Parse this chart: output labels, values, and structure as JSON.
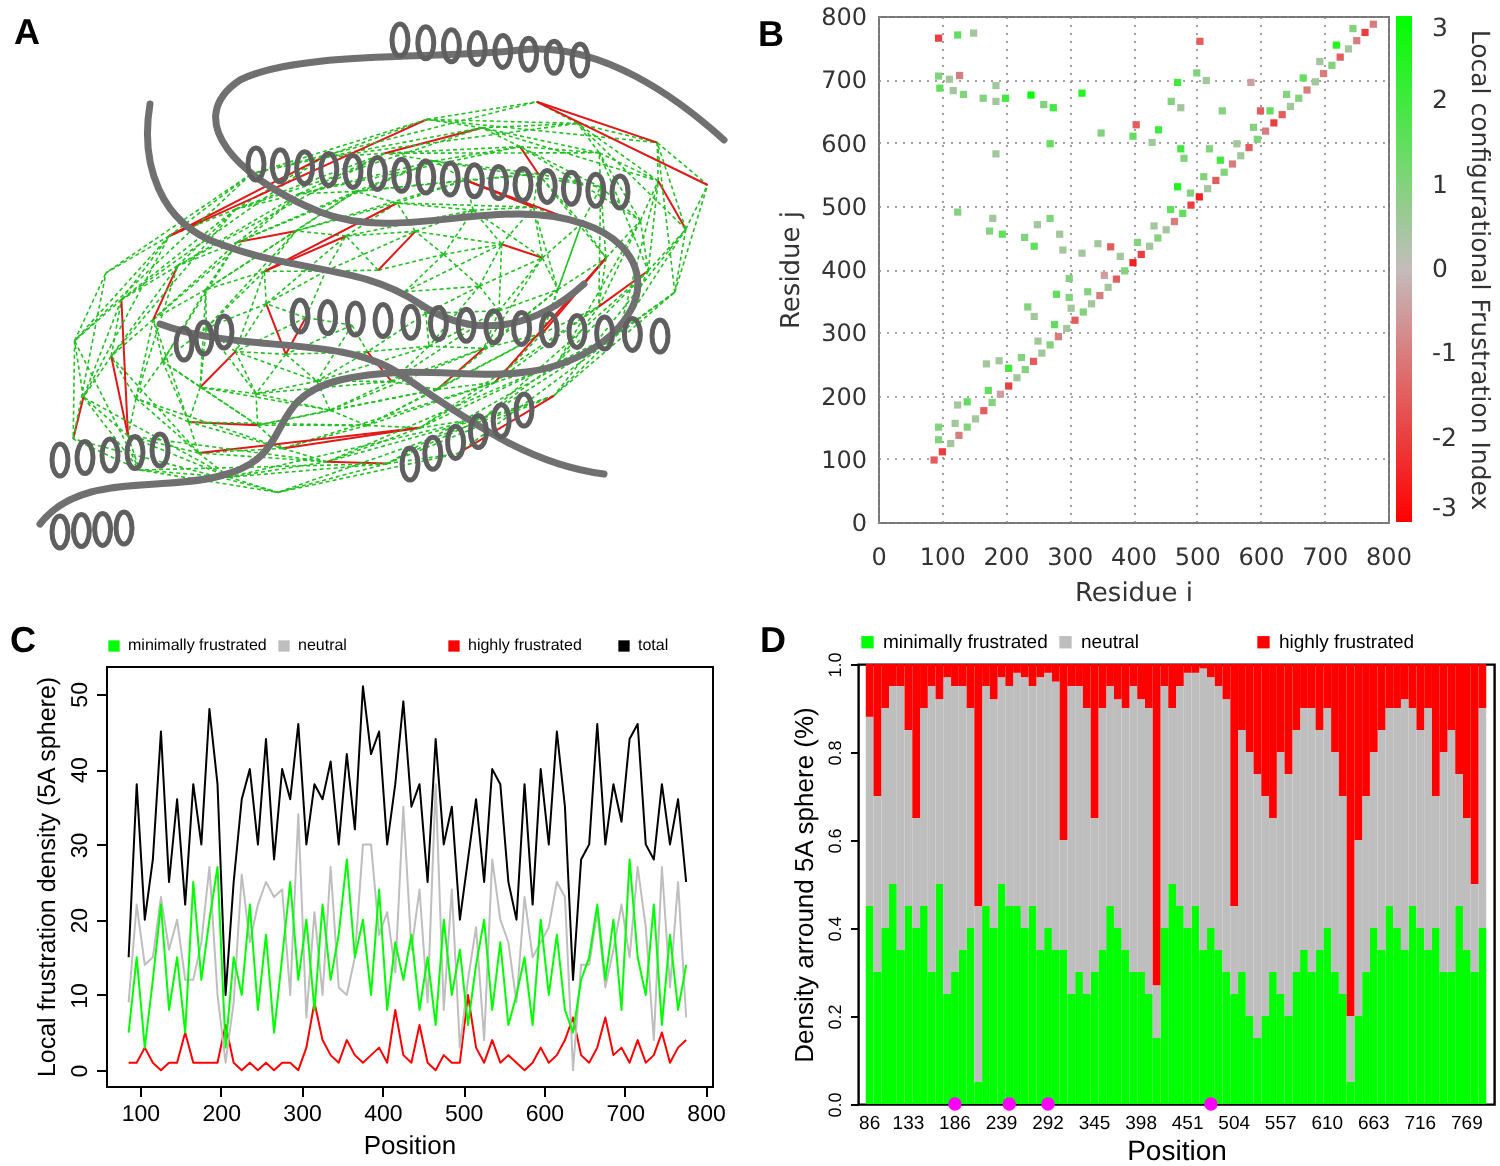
{
  "chart_data": [
    {
      "type": "other",
      "title": "A"
    },
    {
      "type": "scatter",
      "title": "B",
      "xlabel": "Residue i",
      "ylabel": "Residue j",
      "clabel": "Local configurational Frustration Index",
      "marker": "square",
      "grid": true,
      "x": [
        88,
        101,
        114,
        127,
        140,
        153,
        166,
        179,
        192,
        205,
        218,
        231,
        244,
        257,
        270,
        283,
        296,
        309,
        322,
        335,
        348,
        361,
        374,
        387,
        400,
        413,
        426,
        439,
        452,
        465,
        478,
        491,
        504,
        517,
        530,
        543,
        556,
        569,
        582,
        595,
        608,
        621,
        634,
        647,
        660,
        673,
        686,
        699,
        712,
        725,
        738,
        751,
        764,
        777,
        95,
        121,
        173,
        225,
        251,
        277,
        303,
        329,
        355,
        407,
        433,
        459,
        511,
        537,
        563,
        589,
        615,
        641,
        667,
        693,
        719,
        745,
        95,
        125,
        150,
        95,
        112,
        128,
        97,
        118,
        134,
        165,
        185,
        200,
        185,
        240,
        260,
        275,
        320,
        185,
        270,
        125,
        350,
        400,
        405,
        430,
        440,
        460,
        475,
        470,
        500,
        515,
        505,
        475,
        480,
        470,
        490,
        540,
        585,
        600,
        175,
        195,
        180,
        230,
        250,
        245,
        270,
        285,
        290,
        320,
        300,
        235,
        245,
        280,
        300,
        170,
        190,
        205,
        125,
        95,
        140,
        345,
        365,
        380,
        520
      ],
      "values": [
        98,
        111,
        124,
        137,
        150,
        163,
        176,
        189,
        202,
        215,
        228,
        241,
        254,
        267,
        280,
        293,
        306,
        319,
        332,
        345,
        358,
        371,
        384,
        397,
        410,
        423,
        436,
        449,
        462,
        475,
        488,
        501,
        514,
        527,
        540,
        553,
        566,
        579,
        592,
        605,
        618,
        631,
        644,
        657,
        670,
        683,
        696,
        709,
        722,
        735,
        748,
        761,
        774,
        787,
        130,
        156,
        208,
        260,
        286,
        312,
        338,
        364,
        390,
        442,
        468,
        494,
        546,
        572,
        598,
        624,
        650,
        676,
        702,
        728,
        754,
        780,
        765,
        770,
        773,
        705,
        700,
        706,
        686,
        682,
        676,
        670,
        665,
        670,
        690,
        675,
        660,
        655,
        678,
        582,
        598,
        490,
        615,
        610,
        628,
        600,
        620,
        665,
        655,
        695,
        710,
        698,
        760,
        590,
        575,
        530,
        520,
        650,
        695,
        650,
        460,
        455,
        480,
        450,
        470,
        436,
        480,
        455,
        430,
        425,
        385,
        340,
        325,
        360,
        355,
        250,
        255,
        243,
        185,
        150,
        190,
        440,
        435,
        420,
        590
      ],
      "cvalues": [
        -1.5,
        -2,
        0.5,
        -1,
        1,
        0.5,
        -1.5,
        1,
        -0.5,
        -2,
        0.5,
        1,
        -1.5,
        0.5,
        1,
        -1,
        0.5,
        -1.5,
        1,
        0.5,
        -1,
        0.5,
        -1.5,
        1,
        -2.5,
        -2,
        0.5,
        1,
        0.5,
        -1,
        1.5,
        -2,
        -2.5,
        0.5,
        -1.5,
        1,
        -1,
        0.5,
        -1.5,
        1,
        -1,
        -2,
        -1.5,
        0.5,
        1,
        -1,
        0.5,
        -1,
        1,
        -1.5,
        0.5,
        -1,
        -2,
        -1,
        1,
        0.5,
        1.5,
        1,
        0.5,
        1.5,
        0.5,
        1,
        -0.5,
        1,
        0.5,
        1.5,
        1,
        2,
        0.5,
        1,
        1.5,
        1,
        1.5,
        0.5,
        2.5,
        1,
        -2,
        1.5,
        0.5,
        1,
        0.5,
        -1,
        1.5,
        0.5,
        1,
        1,
        0.5,
        2,
        0.5,
        3,
        1,
        2,
        2.5,
        0.5,
        1.5,
        1,
        1,
        1.5,
        -1.5,
        0.5,
        2,
        1,
        0.5,
        2,
        1,
        0.5,
        -1.5,
        2,
        1,
        2.5,
        1,
        1,
        -0.5,
        -1.5,
        1,
        1.5,
        0.5,
        1,
        0.5,
        1.5,
        1,
        0.5,
        0.5,
        0.5,
        1,
        1,
        0.5,
        1.5,
        1,
        0.5,
        0.5,
        2,
        0.5,
        1,
        1.5,
        0.5,
        -1.5,
        0.5,
        1
      ],
      "xlim": [
        0,
        800
      ],
      "ylim": [
        0,
        800
      ],
      "xticks": [
        0,
        100,
        200,
        300,
        400,
        500,
        600,
        700,
        800
      ],
      "yticks": [
        0,
        100,
        200,
        300,
        400,
        500,
        600,
        700,
        800
      ],
      "clim": [
        -3,
        3
      ],
      "cticks": [
        -3,
        -2,
        -1,
        0,
        1,
        2,
        3
      ]
    },
    {
      "type": "line",
      "title": "C",
      "xlabel": "Position",
      "ylabel": "Local frustration density (5A sphere)",
      "legend": "top",
      "x": [
        86,
        96,
        106,
        116,
        126,
        136,
        146,
        156,
        166,
        176,
        186,
        196,
        206,
        216,
        226,
        236,
        246,
        256,
        266,
        276,
        286,
        296,
        306,
        316,
        326,
        336,
        346,
        356,
        366,
        376,
        386,
        396,
        406,
        416,
        426,
        436,
        446,
        456,
        466,
        476,
        486,
        496,
        506,
        516,
        526,
        536,
        546,
        556,
        566,
        576,
        586,
        596,
        606,
        616,
        626,
        636,
        646,
        656,
        666,
        676,
        686,
        696,
        706,
        716,
        726,
        736,
        746,
        756,
        766,
        776
      ],
      "series": [
        {
          "name": "minimally frustrated",
          "color": "#00ff00",
          "values": [
            5,
            15,
            3,
            12,
            22,
            8,
            15,
            5,
            25,
            12,
            20,
            27,
            3,
            15,
            10,
            22,
            8,
            18,
            5,
            15,
            25,
            12,
            20,
            8,
            22,
            12,
            18,
            28,
            15,
            20,
            10,
            24,
            8,
            17,
            12,
            18,
            8,
            15,
            6,
            20,
            10,
            16,
            6,
            14,
            20,
            8,
            17,
            6,
            10,
            15,
            6,
            20,
            10,
            18,
            8,
            5,
            12,
            15,
            22,
            12,
            20,
            8,
            28,
            15,
            10,
            22,
            6,
            18,
            8,
            14
          ]
        },
        {
          "name": "neutral",
          "color": "#bebebe",
          "values": [
            9,
            22,
            14,
            15,
            23,
            16,
            20,
            12,
            12,
            17,
            27,
            10,
            1,
            9,
            26,
            17,
            22,
            25,
            23,
            24,
            10,
            34,
            7,
            21,
            10,
            27,
            11,
            10,
            15,
            30,
            30,
            18,
            21,
            13,
            35,
            16,
            24,
            9,
            38,
            8,
            24,
            3,
            12,
            19,
            4,
            28,
            20,
            17,
            9,
            23,
            15,
            17,
            19,
            25,
            23,
            0,
            14,
            14,
            21,
            11,
            16,
            22,
            15,
            27,
            19,
            4,
            27,
            11,
            25,
            7
          ]
        },
        {
          "name": "highly frustrated",
          "color": "#ff0000",
          "values": [
            1,
            1,
            3,
            1,
            0,
            1,
            1,
            5,
            1,
            1,
            1,
            1,
            6,
            1,
            0,
            1,
            0,
            1,
            0,
            1,
            1,
            0,
            3,
            9,
            4,
            2,
            1,
            4,
            2,
            1,
            2,
            3,
            1,
            8,
            2,
            1,
            6,
            1,
            0,
            2,
            1,
            1,
            10,
            3,
            1,
            4,
            1,
            2,
            1,
            0,
            1,
            3,
            1,
            2,
            4,
            7,
            2,
            1,
            3,
            7,
            2,
            3,
            1,
            4,
            1,
            2,
            5,
            1,
            3,
            4
          ]
        },
        {
          "name": "total",
          "color": "#000000",
          "values": [
            15,
            38,
            20,
            28,
            45,
            25,
            36,
            22,
            38,
            30,
            48,
            38,
            10,
            25,
            36,
            40,
            30,
            44,
            28,
            40,
            36,
            46,
            30,
            38,
            36,
            41,
            30,
            42,
            32,
            51,
            42,
            45,
            30,
            38,
            49,
            35,
            38,
            25,
            44,
            30,
            35,
            20,
            28,
            36,
            25,
            40,
            38,
            25,
            20,
            38,
            22,
            40,
            30,
            45,
            35,
            12,
            28,
            30,
            46,
            30,
            38,
            33,
            44,
            46,
            30,
            28,
            38,
            30,
            36,
            25
          ]
        }
      ],
      "xlim": [
        58,
        808
      ],
      "ylim": [
        -2.1,
        53.7
      ],
      "xticks": [
        100,
        200,
        300,
        400,
        500,
        600,
        700,
        800
      ],
      "yticks": [
        0,
        10,
        20,
        30,
        40,
        50
      ]
    },
    {
      "type": "bar",
      "stacked": true,
      "title": "D",
      "xlabel": "Position",
      "ylabel": "Density arround 5A sphere (%)",
      "legend": "top",
      "marker": "circle",
      "categories": [
        "86",
        null,
        null,
        null,
        null,
        "133",
        null,
        null,
        null,
        null,
        null,
        "186",
        null,
        null,
        null,
        null,
        null,
        "239",
        null,
        null,
        null,
        null,
        null,
        "292",
        null,
        null,
        null,
        null,
        null,
        "345",
        null,
        null,
        null,
        null,
        null,
        "398",
        null,
        null,
        null,
        null,
        null,
        "451",
        null,
        null,
        null,
        null,
        null,
        "504",
        null,
        null,
        null,
        null,
        null,
        "557",
        null,
        null,
        null,
        null,
        null,
        "610",
        null,
        null,
        null,
        null,
        null,
        "663",
        null,
        null,
        null,
        null,
        null,
        "716",
        null,
        null,
        null,
        null,
        null,
        "769",
        null,
        null
      ],
      "series": [
        {
          "name": "minimally frustrated",
          "color": "#00ff00",
          "values": [
            0.45,
            0.3,
            0.4,
            0.5,
            0.35,
            0.45,
            0.4,
            0.45,
            0.3,
            0.5,
            0.25,
            0.3,
            0.35,
            0.4,
            0.05,
            0.45,
            0.4,
            0.5,
            0.45,
            0.45,
            0.4,
            0.45,
            0.35,
            0.4,
            0.35,
            0.35,
            0.25,
            0.3,
            0.25,
            0.3,
            0.35,
            0.45,
            0.4,
            0.35,
            0.3,
            0.3,
            0.25,
            0.15,
            0.4,
            0.5,
            0.45,
            0.4,
            0.45,
            0.35,
            0.4,
            0.35,
            0.3,
            0.25,
            0.3,
            0.2,
            0.15,
            0.2,
            0.3,
            0.25,
            0.2,
            0.3,
            0.35,
            0.3,
            0.35,
            0.4,
            0.3,
            0.25,
            0.05,
            0.2,
            0.3,
            0.4,
            0.35,
            0.45,
            0.4,
            0.35,
            0.45,
            0.4,
            0.35,
            0.4,
            0.3,
            0.3,
            0.45,
            0.35,
            0.3,
            0.4
          ]
        },
        {
          "name": "neutral",
          "color": "#bebebe",
          "values": [
            0.43,
            0.4,
            0.5,
            0.45,
            0.6,
            0.4,
            0.25,
            0.45,
            0.65,
            0.42,
            0.72,
            0.65,
            0.6,
            0.5,
            0.4,
            0.5,
            0.52,
            0.47,
            0.5,
            0.53,
            0.57,
            0.5,
            0.62,
            0.58,
            0.61,
            0.25,
            0.7,
            0.65,
            0.65,
            0.35,
            0.55,
            0.5,
            0.52,
            0.55,
            0.65,
            0.62,
            0.65,
            0.12,
            0.55,
            0.4,
            0.5,
            0.58,
            0.53,
            0.64,
            0.57,
            0.6,
            0.62,
            0.2,
            0.55,
            0.6,
            0.6,
            0.5,
            0.35,
            0.55,
            0.55,
            0.55,
            0.55,
            0.6,
            0.5,
            0.5,
            0.5,
            0.45,
            0.15,
            0.4,
            0.4,
            0.4,
            0.5,
            0.45,
            0.5,
            0.57,
            0.45,
            0.45,
            0.55,
            0.3,
            0.5,
            0.55,
            0.3,
            0.3,
            0.2,
            0.5
          ]
        },
        {
          "name": "highly frustrated",
          "color": "#ff0000",
          "values": [
            0.12,
            0.3,
            0.1,
            0.05,
            0.05,
            0.15,
            0.35,
            0.1,
            0.05,
            0.08,
            0.03,
            0.05,
            0.05,
            0.1,
            0.55,
            0.05,
            0.08,
            0.03,
            0.05,
            0.02,
            0.03,
            0.05,
            0.03,
            0.02,
            0.04,
            0.4,
            0.05,
            0.05,
            0.1,
            0.35,
            0.1,
            0.05,
            0.08,
            0.1,
            0.05,
            0.08,
            0.1,
            0.73,
            0.05,
            0.1,
            0.05,
            0.02,
            0.02,
            0.01,
            0.03,
            0.05,
            0.08,
            0.55,
            0.15,
            0.2,
            0.25,
            0.3,
            0.35,
            0.2,
            0.25,
            0.15,
            0.1,
            0.1,
            0.15,
            0.1,
            0.2,
            0.3,
            0.8,
            0.4,
            0.3,
            0.2,
            0.15,
            0.1,
            0.1,
            0.08,
            0.1,
            0.15,
            0.1,
            0.3,
            0.2,
            0.15,
            0.25,
            0.35,
            0.5,
            0.1
          ]
        },
        {
          "type": "scatter",
          "color": "#ff00ff",
          "values": [
            null,
            null,
            null,
            null,
            null,
            null,
            null,
            null,
            null,
            null,
            null,
            0,
            null,
            null,
            null,
            null,
            null,
            null,
            0,
            null,
            null,
            null,
            null,
            0,
            null,
            null,
            null,
            null,
            null,
            null,
            null,
            null,
            null,
            null,
            null,
            null,
            null,
            null,
            null,
            null,
            null,
            null,
            null,
            null,
            0,
            null,
            null,
            null,
            null,
            null,
            null,
            null,
            null,
            null,
            null,
            null,
            null,
            null,
            null,
            null,
            null,
            null,
            null,
            null,
            null,
            null,
            null,
            null,
            null,
            null,
            null,
            null,
            null,
            null,
            null,
            null,
            null,
            null,
            null,
            null
          ]
        }
      ],
      "ylim": [
        0,
        1
      ],
      "yticks": [
        {
          "value": 0,
          "label": "0.0"
        },
        0.2,
        0.4,
        0.6,
        0.8,
        {
          "value": 1,
          "label": "1.0"
        }
      ]
    }
  ]
}
